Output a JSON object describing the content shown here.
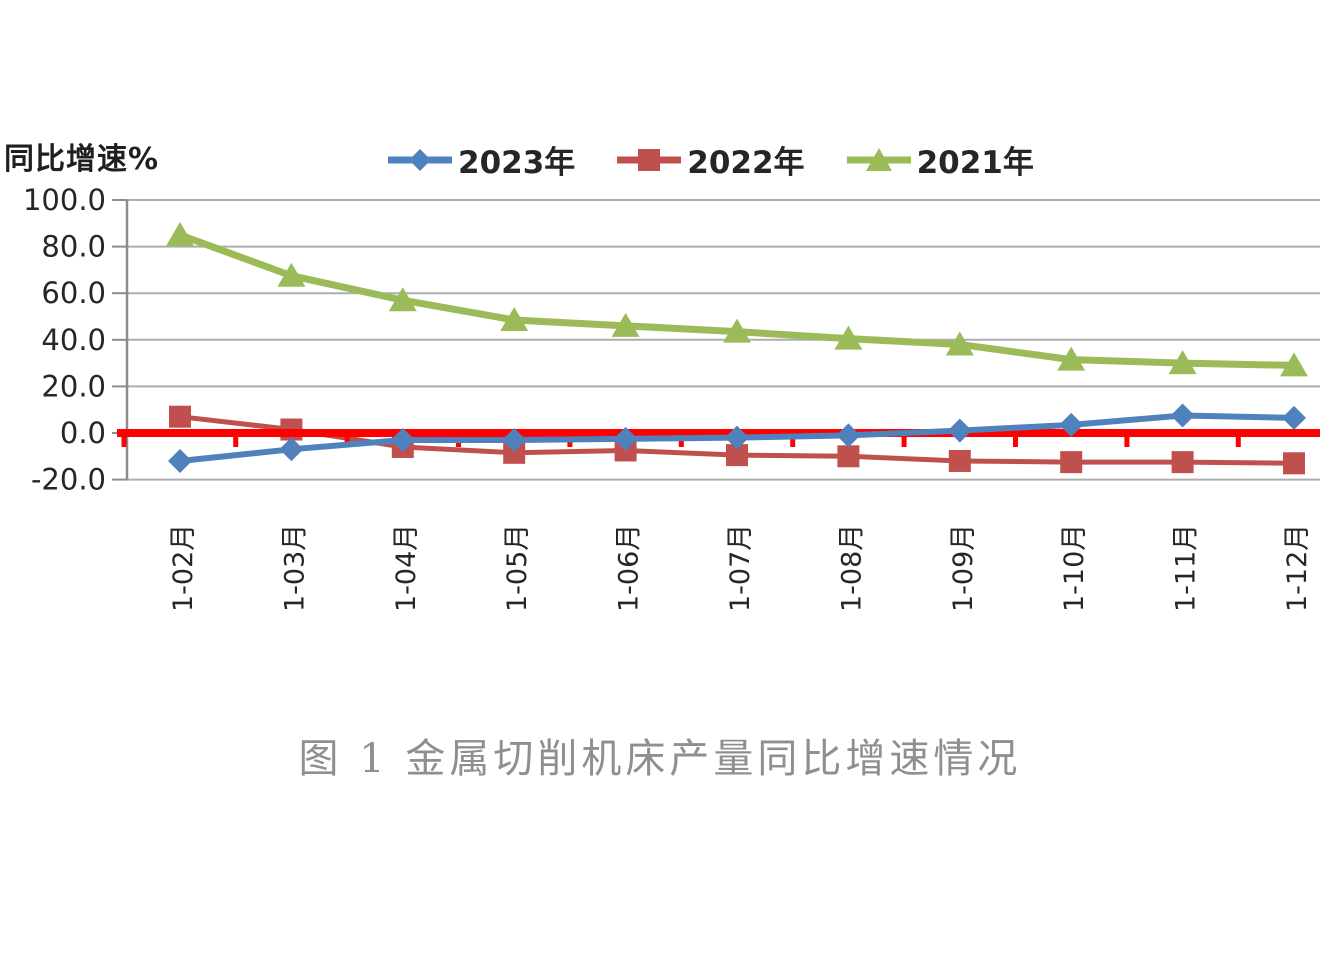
{
  "chart_data": {
    "type": "line",
    "title": "图 1  金属切削机床产量同比增速情况",
    "ylabel": "同比增速%",
    "xlabel": "",
    "categories": [
      "1-02月",
      "1-03月",
      "1-04月",
      "1-05月",
      "1-06月",
      "1-07月",
      "1-08月",
      "1-09月",
      "1-10月",
      "1-11月",
      "1-12月"
    ],
    "series": [
      {
        "name": "2023年",
        "color": "#4F81BD",
        "marker": "diamond",
        "values": [
          -12,
          -7,
          -3,
          -3,
          -2.5,
          -2,
          -1,
          1,
          3.5,
          7.5,
          6.5
        ]
      },
      {
        "name": "2022年",
        "color": "#C0504D",
        "marker": "square",
        "values": [
          7,
          1.5,
          -6,
          -8.5,
          -7.5,
          -9.5,
          -10,
          -12,
          -12.5,
          -12.5,
          -13
        ]
      },
      {
        "name": "2021年",
        "color": "#9BBB59",
        "marker": "triangle",
        "values": [
          85,
          67.5,
          57,
          48.5,
          46,
          43.5,
          40.5,
          38,
          31.5,
          30,
          29
        ]
      }
    ],
    "ylim": [
      -20,
      100
    ],
    "yticks": [
      100,
      80,
      60,
      40,
      20,
      0,
      -20
    ],
    "ytick_labels": [
      "100.0",
      "80.0",
      "60.0",
      "40.0",
      "20.0",
      "0.0",
      "-20.0"
    ],
    "grid": true,
    "legend_position": "top",
    "zero_line_color": "#FF0000"
  },
  "colors": {
    "grid": "#ADADAD",
    "axis": "#8C8C8C",
    "tick_text": "#262626",
    "caption_text": "#8F8F8F"
  }
}
